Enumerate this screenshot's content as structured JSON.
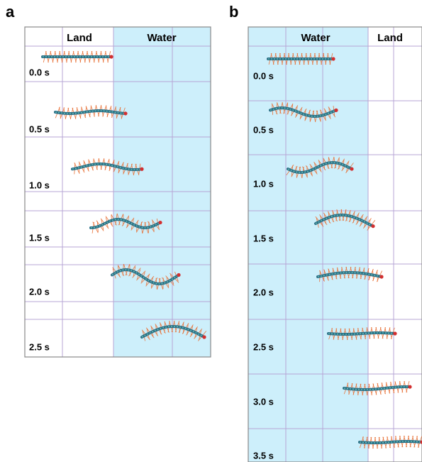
{
  "panels": [
    {
      "label": "a",
      "regions": [
        "Land",
        "Water"
      ],
      "times": [
        "0.0 s",
        "0.5 s",
        "1.0 s",
        "1.5 s",
        "2.0 s",
        "2.5 s"
      ]
    },
    {
      "label": "b",
      "regions": [
        "Water",
        "Land"
      ],
      "times": [
        "0.0 s",
        "0.5 s",
        "1.0 s",
        "1.5 s",
        "2.0 s",
        "2.5 s",
        "3.0 s",
        "3.5 s"
      ]
    }
  ]
}
